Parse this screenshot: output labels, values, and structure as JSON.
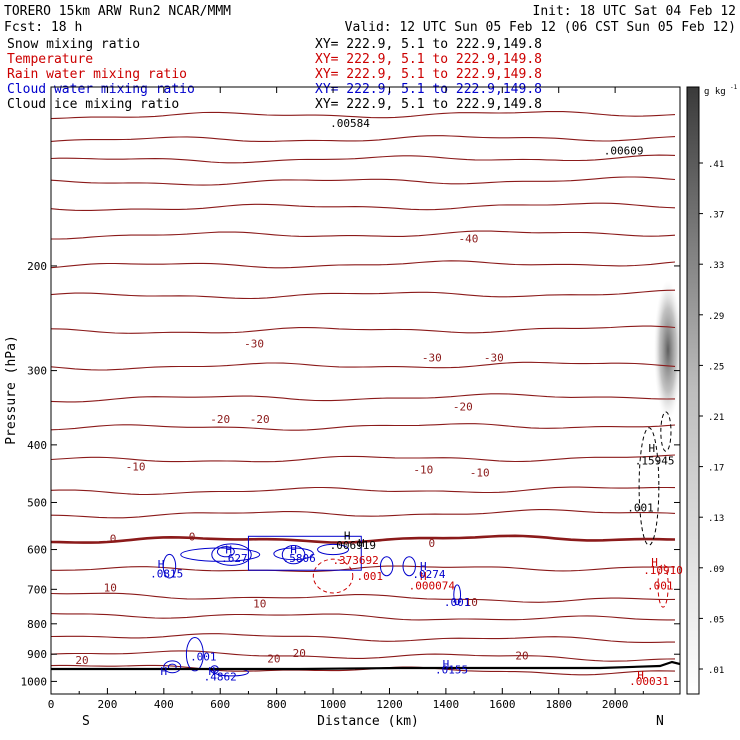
{
  "header": {
    "model": "TORERO  15km ARW   Run2    NCAR/MMM",
    "init": "Init: 18 UTC Sat 04 Feb 12",
    "fcst": "Fcst:   18 h",
    "valid": "Valid: 12 UTC Sun 05 Feb 12 (06 CST Sun 05 Feb 12)"
  },
  "legend": [
    {
      "label": "Snow mixing ratio",
      "xy": "XY= 222.9,  5.1 to 222.9,149.8",
      "color": "#000000"
    },
    {
      "label": "Temperature",
      "xy": "XY= 222.9,  5.1 to 222.9,149.8",
      "color": "#cc0000"
    },
    {
      "label": "Rain water mixing ratio",
      "xy": "XY= 222.9,  5.1 to 222.9,149.8",
      "color": "#cc0000"
    },
    {
      "label": "Cloud water mixing ratio",
      "xy": "XY= 222.9,  5.1 to 222.9,149.8",
      "color": "#0000cc"
    },
    {
      "label": "Cloud ice mixing ratio",
      "xy": "XY= 222.9,  5.1 to 222.9,149.8",
      "color": "#000000"
    }
  ],
  "colorbar": {
    "unit": "g kg",
    "unit_exp": "-1",
    "ticks": [
      ".41",
      ".37",
      ".33",
      ".29",
      ".25",
      ".21",
      ".17",
      ".13",
      ".09",
      ".05",
      ".01"
    ]
  },
  "chart_data": {
    "type": "contour",
    "xlabel": "Distance (km)",
    "ylabel": "Pressure (hPa)",
    "xlim": [
      0,
      2230
    ],
    "ylim": [
      1050,
      100
    ],
    "y_scale": "log",
    "x_ticks": [
      "0",
      "200",
      "400",
      "600",
      "800",
      "1000",
      "1200",
      "1400",
      "1600",
      "1800",
      "2000"
    ],
    "y_ticks": [
      "200",
      "300",
      "400",
      "500",
      "600",
      "700",
      "800",
      "900",
      "1000"
    ],
    "x_left_label": "S",
    "x_right_label": "N",
    "temperature_contours": {
      "color": "#8b1a1a",
      "levels": [
        {
          "p": 112,
          "label": ""
        },
        {
          "p": 123,
          "label": ""
        },
        {
          "p": 133,
          "label": ""
        },
        {
          "p": 145,
          "label": ""
        },
        {
          "p": 160,
          "label": ""
        },
        {
          "p": 178,
          "label": "-40"
        },
        {
          "p": 200,
          "label": ""
        },
        {
          "p": 225,
          "label": ""
        },
        {
          "p": 258,
          "label": "-30"
        },
        {
          "p": 296,
          "label": "-30"
        },
        {
          "p": 335,
          "label": ""
        },
        {
          "p": 375,
          "label": "-20"
        },
        {
          "p": 425,
          "label": "-10"
        },
        {
          "p": 480,
          "label": "-10"
        },
        {
          "p": 525,
          "label": ""
        },
        {
          "p": 580,
          "label": "0"
        },
        {
          "p": 650,
          "label": ""
        },
        {
          "p": 715,
          "label": "10"
        },
        {
          "p": 770,
          "label": "10"
        },
        {
          "p": 835,
          "label": ""
        },
        {
          "p": 895,
          "label": "20"
        },
        {
          "p": 945,
          "label": "20"
        }
      ]
    },
    "labels": [
      {
        "text": "-40",
        "x": 1480,
        "p": 180,
        "color": "#8b1a1a"
      },
      {
        "text": "-30",
        "x": 720,
        "p": 270,
        "color": "#8b1a1a"
      },
      {
        "text": "-30",
        "x": 1350,
        "p": 285,
        "color": "#8b1a1a"
      },
      {
        "text": "-30",
        "x": 1570,
        "p": 285,
        "color": "#8b1a1a"
      },
      {
        "text": "-20",
        "x": 600,
        "p": 362,
        "color": "#8b1a1a"
      },
      {
        "text": "-20",
        "x": 740,
        "p": 362,
        "color": "#8b1a1a"
      },
      {
        "text": "-20",
        "x": 1460,
        "p": 345,
        "color": "#8b1a1a"
      },
      {
        "text": "-10",
        "x": 300,
        "p": 435,
        "color": "#8b1a1a"
      },
      {
        "text": "-10",
        "x": 1320,
        "p": 440,
        "color": "#8b1a1a"
      },
      {
        "text": "-10",
        "x": 1520,
        "p": 445,
        "color": "#8b1a1a"
      },
      {
        "text": "0",
        "x": 220,
        "p": 575,
        "color": "#8b1a1a"
      },
      {
        "text": "0",
        "x": 500,
        "p": 570,
        "color": "#8b1a1a"
      },
      {
        "text": "0",
        "x": 1350,
        "p": 585,
        "color": "#8b1a1a"
      },
      {
        "text": "10",
        "x": 210,
        "p": 695,
        "color": "#8b1a1a"
      },
      {
        "text": "10",
        "x": 740,
        "p": 740,
        "color": "#8b1a1a"
      },
      {
        "text": "10",
        "x": 1490,
        "p": 735,
        "color": "#8b1a1a"
      },
      {
        "text": "20",
        "x": 110,
        "p": 920,
        "color": "#8b1a1a"
      },
      {
        "text": "20",
        "x": 790,
        "p": 915,
        "color": "#8b1a1a"
      },
      {
        "text": "20",
        "x": 880,
        "p": 895,
        "color": "#8b1a1a"
      },
      {
        "text": "20",
        "x": 1670,
        "p": 905,
        "color": "#8b1a1a"
      },
      {
        "text": ".00609",
        "x": 2030,
        "p": 128,
        "color": "#000000"
      },
      {
        "text": ".00584",
        "x": 1060,
        "p": 115,
        "color": "#000000"
      },
      {
        "text": "H",
        "x": 2130,
        "p": 405,
        "color": "#000000"
      },
      {
        "text": ".15945",
        "x": 2140,
        "p": 425,
        "color": "#000000"
      },
      {
        "text": ".001",
        "x": 2090,
        "p": 510,
        "color": "#000000"
      },
      {
        "text": "H",
        "x": 1050,
        "p": 568,
        "color": "#000000"
      },
      {
        "text": ".006919",
        "x": 1070,
        "p": 590,
        "color": "#000000"
      },
      {
        "text": "H",
        "x": 1100,
        "p": 585,
        "color": "#000000"
      },
      {
        "text": ".373692",
        "x": 1080,
        "p": 625,
        "color": "#cc0000"
      },
      {
        "text": ".001",
        "x": 1130,
        "p": 665,
        "color": "#cc0000"
      },
      {
        "text": "H",
        "x": 1320,
        "p": 665,
        "color": "#cc0000"
      },
      {
        "text": ".000074",
        "x": 1350,
        "p": 690,
        "color": "#cc0000"
      },
      {
        "text": "H",
        "x": 2140,
        "p": 630,
        "color": "#cc0000"
      },
      {
        "text": ".10910",
        "x": 2170,
        "p": 650,
        "color": "#cc0000"
      },
      {
        "text": ".001",
        "x": 2160,
        "p": 690,
        "color": "#cc0000"
      },
      {
        "text": "H",
        "x": 2090,
        "p": 975,
        "color": "#cc0000"
      },
      {
        "text": ".00031",
        "x": 2120,
        "p": 998,
        "color": "#cc0000"
      },
      {
        "text": "H",
        "x": 390,
        "p": 635,
        "color": "#0000cc"
      },
      {
        "text": ".0815",
        "x": 410,
        "p": 658,
        "color": "#0000cc"
      },
      {
        "text": "H",
        "x": 630,
        "p": 600,
        "color": "#0000cc"
      },
      {
        "text": ".627",
        "x": 650,
        "p": 620,
        "color": "#0000cc"
      },
      {
        "text": "H",
        "x": 860,
        "p": 600,
        "color": "#0000cc"
      },
      {
        "text": ".5806",
        "x": 880,
        "p": 620,
        "color": "#0000cc"
      },
      {
        "text": "H",
        "x": 1320,
        "p": 640,
        "color": "#0000cc"
      },
      {
        "text": ".0274",
        "x": 1340,
        "p": 660,
        "color": "#0000cc"
      },
      {
        "text": ".001",
        "x": 1440,
        "p": 735,
        "color": "#0000cc"
      },
      {
        "text": ".001",
        "x": 540,
        "p": 908,
        "color": "#0000cc"
      },
      {
        "text": "H",
        "x": 400,
        "p": 960,
        "color": "#0000cc"
      },
      {
        "text": "H",
        "x": 570,
        "p": 960,
        "color": "#0000cc"
      },
      {
        "text": ".4862",
        "x": 600,
        "p": 982,
        "color": "#0000cc"
      },
      {
        "text": "H",
        "x": 1400,
        "p": 935,
        "color": "#0000cc"
      },
      {
        "text": ".0155",
        "x": 1420,
        "p": 955,
        "color": "#0000cc"
      }
    ]
  }
}
